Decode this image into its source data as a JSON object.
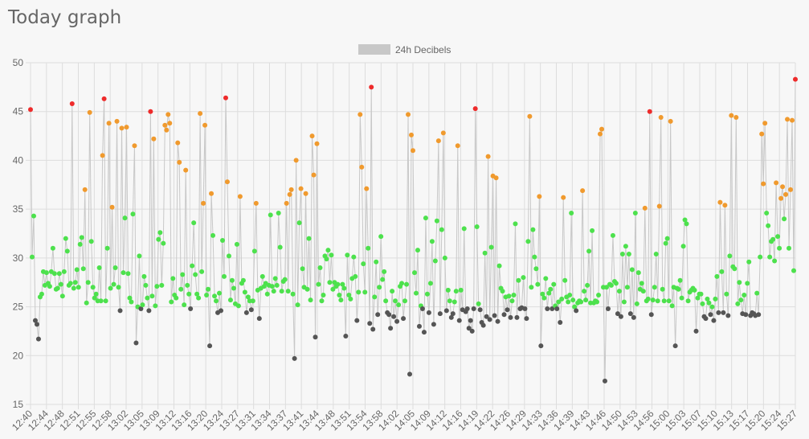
{
  "page": {
    "title": "Today graph"
  },
  "colors": {
    "background": "#f7f7f7",
    "grid": "#dddddd",
    "line": "#c8c8c8",
    "green": "#4de14d",
    "orange": "#f09a2e",
    "red": "#ee2b2b",
    "gray": "#555555"
  },
  "chart_data": {
    "type": "line",
    "ylim": [
      15,
      50
    ],
    "yticks": [
      15,
      20,
      25,
      30,
      35,
      40,
      45,
      50
    ],
    "legend": {
      "position": "top",
      "label": "24h Decibels"
    },
    "grid": true,
    "series": [
      {
        "name": "24h Decibels",
        "values": [
          45.2,
          30.1,
          34.3,
          23.6,
          23.2,
          21.7,
          26.0,
          26.3,
          28.6,
          27.2,
          28.5,
          27.4,
          27.1,
          28.6,
          31.0,
          28.4,
          26.8,
          26.9,
          28.4,
          27.3,
          26.1,
          28.6,
          32.0,
          30.7,
          27.2,
          27.4,
          45.8,
          26.9,
          27.5,
          28.8,
          27.0,
          31.4,
          32.1,
          28.9,
          37.0,
          25.4,
          27.5,
          44.9,
          31.7,
          27.0,
          25.9,
          26.3,
          25.6,
          29.0,
          25.6,
          40.5,
          46.3,
          25.6,
          31.0,
          43.8,
          26.9,
          35.2,
          27.3,
          29.0,
          44.0,
          27.0,
          24.6,
          43.3,
          28.5,
          34.1,
          43.4,
          28.4,
          25.9,
          25.5,
          34.5,
          41.5,
          21.3,
          25.0,
          30.2,
          24.8,
          25.2,
          28.1,
          27.2,
          25.9,
          24.6,
          45.0,
          26.1,
          42.2,
          25.1,
          27.1,
          31.9,
          32.6,
          27.2,
          31.5,
          43.6,
          43.1,
          44.7,
          43.8,
          25.5,
          27.9,
          26.2,
          25.9,
          41.8,
          39.8,
          26.8,
          28.3,
          25.2,
          39.0,
          27.2,
          26.3,
          24.8,
          29.2,
          33.6,
          28.3,
          26.3,
          25.9,
          44.8,
          28.6,
          35.6,
          43.6,
          26.2,
          26.8,
          21.0,
          36.6,
          32.3,
          26.1,
          25.6,
          24.4,
          26.4,
          24.6,
          31.8,
          28.1,
          46.4,
          37.8,
          30.2,
          25.7,
          27.7,
          26.9,
          25.3,
          31.4,
          25.1,
          36.3,
          27.4,
          27.7,
          26.5,
          24.4,
          26.0,
          25.6,
          24.7,
          25.6,
          30.7,
          35.6,
          26.7,
          23.8,
          26.9,
          28.1,
          27.1,
          27.4,
          26.3,
          27.2,
          34.4,
          27.1,
          26.6,
          27.9,
          27.2,
          34.6,
          31.1,
          26.6,
          27.6,
          27.8,
          35.6,
          26.6,
          36.5,
          37.0,
          26.3,
          19.7,
          40.0,
          25.2,
          33.6,
          37.1,
          28.9,
          27.0,
          36.6,
          26.8,
          32.0,
          25.7,
          42.5,
          38.5,
          21.9,
          41.7,
          27.3,
          29.0,
          25.6,
          26.2,
          30.2,
          29.9,
          30.8,
          27.5,
          30.3,
          26.8,
          27.5,
          27.1,
          27.3,
          26.2,
          25.7,
          27.3,
          26.9,
          22.0,
          30.3,
          26.2,
          25.8,
          27.9,
          30.1,
          28.1,
          23.6,
          26.5,
          44.7,
          39.3,
          29.4,
          26.5,
          37.1,
          31.0,
          23.3,
          47.5,
          22.7,
          26.0,
          29.6,
          24.2,
          27.0,
          32.2,
          27.8,
          28.6,
          25.6,
          24.4,
          24.2,
          22.8,
          26.6,
          24.0,
          25.6,
          23.5,
          25.2,
          27.1,
          27.4,
          23.8,
          25.6,
          27.3,
          44.7,
          18.1,
          42.6,
          41.0,
          28.5,
          26.4,
          30.8,
          23.0,
          25.1,
          24.8,
          22.4,
          34.1,
          26.3,
          24.4,
          27.4,
          31.7,
          23.2,
          29.7,
          33.8,
          42.0,
          24.3,
          32.9,
          42.8,
          30.0,
          24.6,
          26.7,
          25.6,
          23.9,
          24.3,
          25.5,
          26.6,
          41.5,
          23.6,
          26.7,
          24.7,
          33.0,
          24.5,
          24.8,
          22.8,
          23.6,
          22.5,
          24.8,
          45.3,
          33.2,
          25.3,
          24.7,
          23.4,
          23.1,
          30.5,
          24.0,
          40.4,
          23.7,
          31.1,
          38.4,
          24.1,
          38.2,
          23.5,
          29.2,
          26.9,
          26.6,
          24.2,
          26.0,
          24.7,
          26.1,
          23.9,
          25.6,
          26.2,
          33.5,
          23.9,
          27.7,
          24.8,
          24.9,
          28.0,
          24.8,
          23.8,
          31.7,
          44.5,
          27.0,
          32.9,
          30.1,
          28.9,
          27.3,
          36.3,
          21.0,
          26.3,
          25.9,
          27.9,
          24.8,
          26.4,
          26.8,
          24.8,
          27.3,
          25.1,
          24.8,
          25.5,
          23.4,
          25.8,
          36.2,
          27.7,
          26.0,
          25.5,
          26.2,
          34.6,
          25.7,
          25.0,
          24.6,
          25.4,
          25.6,
          25.5,
          36.9,
          26.6,
          25.7,
          27.2,
          30.7,
          25.4,
          32.8,
          25.4,
          25.6,
          25.5,
          26.2,
          42.7,
          43.2,
          27.0,
          17.4,
          27.0,
          24.8,
          27.3,
          27.2,
          32.3,
          27.6,
          27.4,
          24.3,
          26.6,
          24.0,
          30.4,
          25.5,
          31.2,
          27.0,
          30.4,
          24.3,
          28.8,
          23.9,
          34.6,
          25.3,
          28.5,
          26.8,
          27.4,
          26.6,
          35.1,
          25.6,
          25.8,
          45.0,
          24.2,
          25.7,
          27.0,
          30.4,
          25.6,
          35.3,
          44.4,
          26.8,
          25.6,
          31.5,
          32.0,
          25.6,
          44.0,
          25.1,
          27.0,
          21.0,
          26.9,
          26.8,
          27.7,
          25.9,
          31.2,
          33.9,
          33.5,
          25.6,
          26.5,
          26.7,
          26.9,
          26.7,
          22.5,
          25.9,
          26.3,
          26.3,
          25.3,
          24.0,
          23.8,
          25.8,
          25.4,
          24.2,
          25.0,
          23.6,
          25.8,
          28.1,
          24.4,
          35.7,
          28.6,
          24.4,
          35.4,
          26.3,
          24.1,
          30.2,
          44.6,
          29.1,
          28.9,
          44.4,
          25.3,
          27.5,
          25.7,
          24.3,
          26.2,
          24.2,
          27.4,
          29.6,
          24.1,
          24.4,
          24.3,
          24.1,
          26.4,
          24.2,
          30.1,
          42.7,
          37.6,
          43.8,
          34.6,
          33.3,
          30.1,
          31.7,
          31.9,
          29.7,
          37.7,
          32.2,
          31.0,
          36.1,
          37.3,
          34.0,
          36.5,
          44.2,
          31.0,
          37.0,
          44.1,
          28.7,
          48.3
        ]
      }
    ],
    "x_tick_labels": [
      "12:40",
      "12:44",
      "12:48",
      "12:51",
      "12:55",
      "12:58",
      "13:02",
      "13:05",
      "13:09",
      "13:12",
      "13:16",
      "13:20",
      "13:24",
      "13:27",
      "13:31",
      "13:34",
      "13:37",
      "13:41",
      "13:44",
      "13:48",
      "13:51",
      "13:54",
      "13:58",
      "14:02",
      "14:05",
      "14:09",
      "14:12",
      "14:16",
      "14:19",
      "14:22",
      "14:26",
      "14:29",
      "14:33",
      "14:36",
      "14:39",
      "14:43",
      "14:46",
      "14:50",
      "14:53",
      "14:56",
      "15:00",
      "15:03",
      "15:07",
      "15:10",
      "15:13",
      "15:17",
      "15:20",
      "15:24",
      "15:27"
    ]
  }
}
